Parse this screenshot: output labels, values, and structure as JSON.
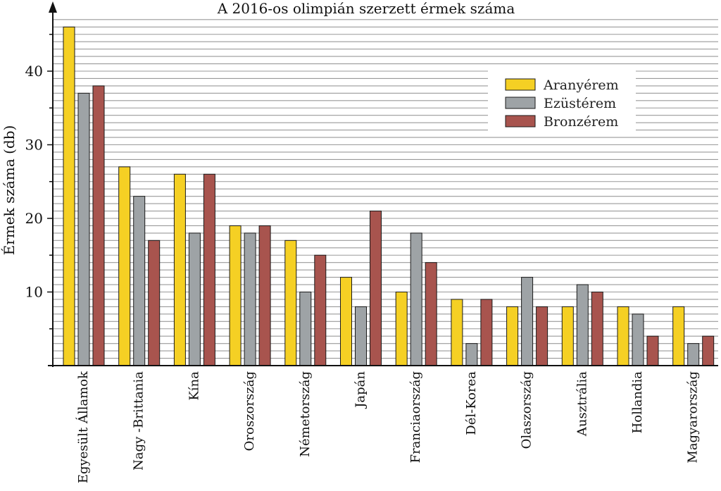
{
  "chart_data": {
    "type": "bar",
    "title": "A 2016-os olimpián szerzett érmek száma",
    "xlabel": "",
    "ylabel": "Érmek száma (db)",
    "ylim": [
      0,
      47
    ],
    "yticks": [
      10,
      20,
      30,
      40
    ],
    "grid": true,
    "legend_position": "top-right",
    "categories": [
      "Egyesült Államok",
      "Nagy -Brittania",
      "Kína",
      "Oroszország",
      "Németország",
      "Japán",
      "Franciaország",
      "Dél-Korea",
      "Olaszország",
      "Ausztrália",
      "Hollandia",
      "Magyarország"
    ],
    "series": [
      {
        "name": "Aranyérem",
        "color": "#f5d024",
        "values": [
          46,
          27,
          26,
          19,
          17,
          12,
          10,
          9,
          8,
          8,
          8,
          8
        ]
      },
      {
        "name": "Ezüstérem",
        "color": "#9ea3a6",
        "values": [
          37,
          23,
          18,
          18,
          10,
          8,
          18,
          3,
          12,
          11,
          7,
          3
        ]
      },
      {
        "name": "Bronzérem",
        "color": "#a8544e",
        "values": [
          38,
          17,
          26,
          19,
          15,
          21,
          14,
          9,
          8,
          10,
          4,
          4
        ]
      }
    ]
  }
}
